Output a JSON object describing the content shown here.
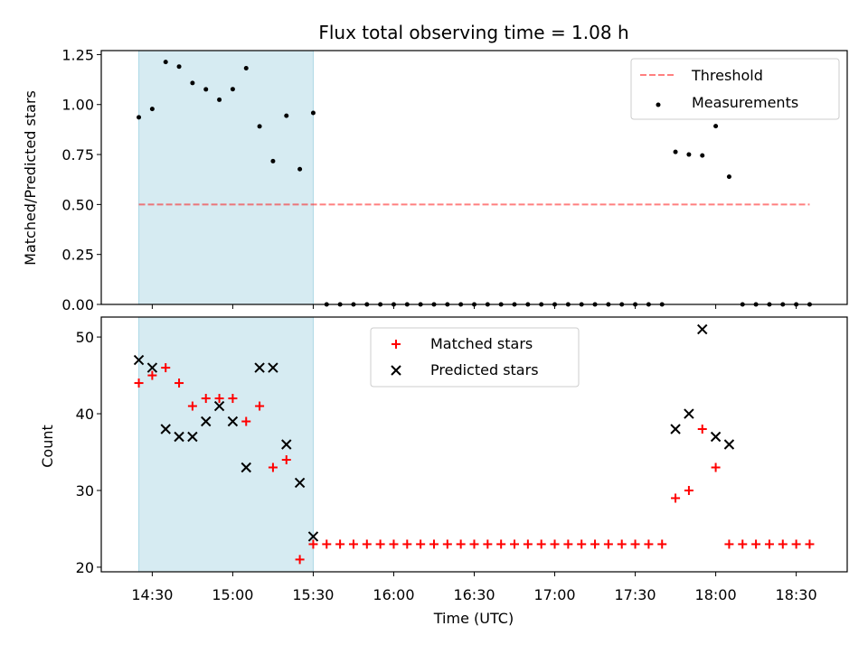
{
  "title": "Flux total observing time = 1.08 h",
  "xlabel": "Time (UTC)",
  "x_ticks": [
    "14:30",
    "15:00",
    "15:30",
    "16:00",
    "16:30",
    "17:00",
    "17:30",
    "18:00",
    "18:30"
  ],
  "colors": {
    "shade": "#add8e6",
    "threshold": "#ff0000",
    "measurement": "#000000",
    "matched": "#ff0000",
    "predicted": "#000000"
  },
  "chart_data": [
    {
      "type": "scatter",
      "ylabel": "Matched/Predicted stars",
      "ylim": [
        0,
        1.27
      ],
      "y_ticks": [
        "0.00",
        "0.25",
        "0.50",
        "0.75",
        "1.00",
        "1.25"
      ],
      "shaded_interval": [
        "14:25",
        "15:30"
      ],
      "threshold": {
        "name": "Threshold",
        "value": 0.5,
        "x_range": [
          "14:25",
          "18:35"
        ],
        "style": "dashed"
      },
      "legend": {
        "placement": "top-right",
        "entries": [
          "Threshold",
          "Measurements"
        ]
      },
      "series": [
        {
          "name": "Measurements",
          "x": [
            "14:25",
            "14:30",
            "14:35",
            "14:40",
            "14:45",
            "14:50",
            "14:55",
            "15:00",
            "15:05",
            "15:10",
            "15:15",
            "15:20",
            "15:25",
            "15:30",
            "15:35",
            "15:40",
            "15:45",
            "15:50",
            "15:55",
            "16:00",
            "16:05",
            "16:10",
            "16:15",
            "16:20",
            "16:25",
            "16:30",
            "16:35",
            "16:40",
            "16:45",
            "16:50",
            "16:55",
            "17:00",
            "17:05",
            "17:10",
            "17:15",
            "17:20",
            "17:25",
            "17:30",
            "17:35",
            "17:40",
            "17:45",
            "17:50",
            "17:55",
            "18:00",
            "18:05",
            "18:10",
            "18:15",
            "18:20",
            "18:25",
            "18:30",
            "18:35"
          ],
          "y": [
            0.936,
            0.978,
            1.213,
            1.19,
            1.108,
            1.076,
            1.024,
            1.077,
            1.182,
            0.891,
            0.717,
            0.944,
            0.677,
            0.958,
            0,
            0,
            0,
            0,
            0,
            0,
            0,
            0,
            0,
            0,
            0,
            0,
            0,
            0,
            0,
            0,
            0,
            0,
            0,
            0,
            0,
            0,
            0,
            0,
            0,
            0,
            0.763,
            0.75,
            0.745,
            0.892,
            0.639,
            0,
            0,
            0,
            0,
            0,
            0
          ]
        }
      ]
    },
    {
      "type": "scatter",
      "ylabel": "Count",
      "ylim": [
        19.4,
        52.6
      ],
      "y_ticks": [
        "20",
        "30",
        "40",
        "50"
      ],
      "shaded_interval": [
        "14:25",
        "15:30"
      ],
      "legend": {
        "placement": "top-center",
        "entries": [
          "Matched stars",
          "Predicted stars"
        ]
      },
      "series": [
        {
          "name": "Matched stars",
          "marker": "plus",
          "x": [
            "14:25",
            "14:30",
            "14:35",
            "14:40",
            "14:45",
            "14:50",
            "14:55",
            "15:00",
            "15:05",
            "15:10",
            "15:15",
            "15:20",
            "15:25",
            "15:30",
            "15:35",
            "15:40",
            "15:45",
            "15:50",
            "15:55",
            "16:00",
            "16:05",
            "16:10",
            "16:15",
            "16:20",
            "16:25",
            "16:30",
            "16:35",
            "16:40",
            "16:45",
            "16:50",
            "16:55",
            "17:00",
            "17:05",
            "17:10",
            "17:15",
            "17:20",
            "17:25",
            "17:30",
            "17:35",
            "17:40",
            "17:45",
            "17:50",
            "17:55",
            "18:00",
            "18:05",
            "18:10",
            "18:15",
            "18:20",
            "18:25",
            "18:30",
            "18:35"
          ],
          "y": [
            44,
            45,
            46,
            44,
            41,
            42,
            42,
            42,
            39,
            41,
            33,
            34,
            21,
            23,
            23,
            23,
            23,
            23,
            23,
            23,
            23,
            23,
            23,
            23,
            23,
            23,
            23,
            23,
            23,
            23,
            23,
            23,
            23,
            23,
            23,
            23,
            23,
            23,
            23,
            23,
            29,
            30,
            38,
            33,
            23,
            23,
            23,
            23,
            23,
            23,
            23
          ]
        },
        {
          "name": "Predicted stars",
          "marker": "x",
          "x": [
            "14:25",
            "14:30",
            "14:35",
            "14:40",
            "14:45",
            "14:50",
            "14:55",
            "15:00",
            "15:05",
            "15:10",
            "15:15",
            "15:20",
            "15:25",
            "15:30",
            "17:45",
            "17:50",
            "17:55",
            "18:00",
            "18:05"
          ],
          "y": [
            47,
            46,
            38,
            37,
            37,
            39,
            41,
            39,
            33,
            46,
            46,
            36,
            31,
            24,
            38,
            40,
            51,
            37,
            36
          ]
        }
      ]
    }
  ]
}
